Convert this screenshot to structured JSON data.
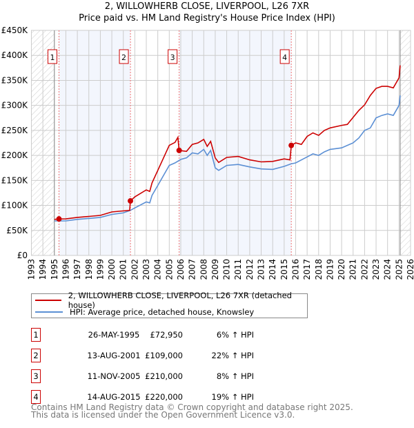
{
  "title": "2, WILLOWHERB CLOSE, LIVERPOOL, L26 7XR",
  "subtitle": "Price paid vs. HM Land Registry's House Price Index (HPI)",
  "chart_data": {
    "type": "line",
    "xlim": [
      1993,
      2026
    ],
    "ylim": [
      0,
      450000
    ],
    "x_ticks": [
      "1993",
      "1994",
      "1995",
      "1996",
      "1997",
      "1998",
      "1999",
      "2000",
      "2001",
      "2002",
      "2003",
      "2004",
      "2005",
      "2006",
      "2007",
      "2008",
      "2009",
      "2010",
      "2011",
      "2012",
      "2013",
      "2014",
      "2015",
      "2016",
      "2017",
      "2018",
      "2019",
      "2020",
      "2021",
      "2022",
      "2023",
      "2024",
      "2025",
      "2026"
    ],
    "y_ticks": [
      {
        "v": 0,
        "label": "£0"
      },
      {
        "v": 50000,
        "label": "£50K"
      },
      {
        "v": 100000,
        "label": "£100K"
      },
      {
        "v": 150000,
        "label": "£150K"
      },
      {
        "v": 200000,
        "label": "£200K"
      },
      {
        "v": 250000,
        "label": "£250K"
      },
      {
        "v": 300000,
        "label": "£300K"
      },
      {
        "v": 350000,
        "label": "£350K"
      },
      {
        "v": 400000,
        "label": "£400K"
      },
      {
        "v": 450000,
        "label": "£450K"
      }
    ],
    "grid": true,
    "data_range": [
      1995.0,
      2025.1
    ],
    "shaded_periods": [
      [
        1995.4,
        2001.62
      ],
      [
        2005.86,
        2015.62
      ]
    ],
    "series": [
      {
        "name": "2, WILLOWHERB CLOSE, LIVERPOOL, L26 7XR (detached house)",
        "color": "#cc0000",
        "x": [
          1995.0,
          1995.4,
          1996,
          1997,
          1998,
          1999,
          2000,
          2001,
          2001.55,
          2001.62,
          2002,
          2003,
          2003.3,
          2003.5,
          2004,
          2004.5,
          2005,
          2005.5,
          2005.75,
          2005.86,
          2006.5,
          2007,
          2007.5,
          2008,
          2008.3,
          2008.6,
          2009,
          2009.3,
          2010,
          2011,
          2012,
          2013,
          2014,
          2015,
          2015.5,
          2015.62,
          2016,
          2016.5,
          2017,
          2017.5,
          2018,
          2018.5,
          2019,
          2020,
          2020.5,
          2021,
          2021.5,
          2022,
          2022.5,
          2023,
          2023.5,
          2024,
          2024.5,
          2025,
          2025.1
        ],
        "y": [
          72000,
          72950,
          73000,
          76000,
          78000,
          80000,
          87000,
          89000,
          90000,
          109000,
          117000,
          131000,
          128000,
          145000,
          170000,
          195000,
          220000,
          226000,
          236000,
          210000,
          208000,
          222000,
          225000,
          232000,
          218000,
          228000,
          195000,
          186000,
          196000,
          198000,
          191000,
          187000,
          188000,
          193000,
          191000,
          220000,
          225000,
          222000,
          238000,
          245000,
          240000,
          250000,
          255000,
          260000,
          262000,
          276000,
          290000,
          301000,
          320000,
          334000,
          338000,
          338000,
          335000,
          355000,
          380000
        ]
      },
      {
        "name": "HPI: Average price, detached house, Knowsley",
        "color": "#5b8fd4",
        "x": [
          1995.0,
          1996,
          1997,
          1998,
          1999,
          2000,
          2001,
          2001.6,
          2002,
          2003,
          2003.3,
          2003.5,
          2004,
          2004.5,
          2005,
          2005.5,
          2006,
          2006.5,
          2007,
          2007.5,
          2008,
          2008.3,
          2008.6,
          2009,
          2009.3,
          2010,
          2011,
          2012,
          2013,
          2014,
          2015,
          2015.6,
          2016,
          2017,
          2017.5,
          2018,
          2018.5,
          2019,
          2020,
          2021,
          2021.5,
          2022,
          2022.5,
          2023,
          2023.5,
          2024,
          2024.5,
          2025,
          2025.1
        ],
        "y": [
          69000,
          69000,
          72000,
          74000,
          76000,
          82000,
          85000,
          90000,
          95000,
          107000,
          105000,
          120000,
          140000,
          160000,
          180000,
          185000,
          192000,
          195000,
          205000,
          203000,
          212000,
          200000,
          210000,
          175000,
          170000,
          180000,
          182000,
          177000,
          173000,
          172000,
          178000,
          183000,
          185000,
          197000,
          203000,
          200000,
          207000,
          212000,
          215000,
          225000,
          235000,
          250000,
          255000,
          275000,
          280000,
          283000,
          280000,
          300000,
          320000
        ]
      }
    ],
    "sales": [
      {
        "n": "1",
        "x": 1995.4,
        "y": 72950,
        "date": "26-MAY-1995",
        "price": "£72,950",
        "hpi": "6% ↑ HPI"
      },
      {
        "n": "2",
        "x": 2001.62,
        "y": 109000,
        "date": "13-AUG-2001",
        "price": "£109,000",
        "hpi": "22% ↑ HPI"
      },
      {
        "n": "3",
        "x": 2005.86,
        "y": 210000,
        "date": "11-NOV-2005",
        "price": "£210,000",
        "hpi": "8% ↑ HPI"
      },
      {
        "n": "4",
        "x": 2015.62,
        "y": 220000,
        "date": "14-AUG-2015",
        "price": "£220,000",
        "hpi": "19% ↑ HPI"
      }
    ]
  },
  "legend": {
    "property": "2, WILLOWHERB CLOSE, LIVERPOOL, L26 7XR (detached house)",
    "hpi": "HPI: Average price, detached house, Knowsley"
  },
  "footer": {
    "line1": "Contains HM Land Registry data © Crown copyright and database right 2025.",
    "line2": "This data is licensed under the Open Government Licence v3.0."
  }
}
